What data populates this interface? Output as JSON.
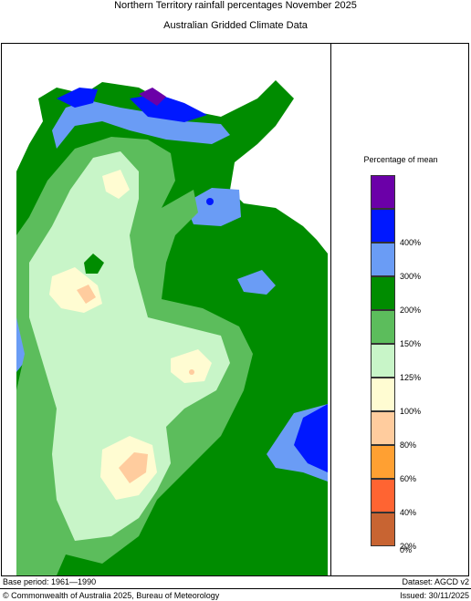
{
  "title": "Northern Territory rainfall percentages November 2025",
  "subtitle": "Australian Gridded Climate Data",
  "legend": {
    "title": "Percentage of mean",
    "entries": [
      {
        "color": "#6b00a8",
        "label": ""
      },
      {
        "color": "#0018ff",
        "label": "400%"
      },
      {
        "color": "#6a9cf5",
        "label": "300%"
      },
      {
        "color": "#008c00",
        "label": "200%"
      },
      {
        "color": "#5cbd5c",
        "label": "150%"
      },
      {
        "color": "#c8f5c8",
        "label": "125%"
      },
      {
        "color": "#fffcd2",
        "label": "100%"
      },
      {
        "color": "#ffcc9e",
        "label": "80%"
      },
      {
        "color": "#ffa032",
        "label": "60%"
      },
      {
        "color": "#ff6432",
        "label": "40%"
      },
      {
        "color": "#c86432",
        "label": "20%"
      }
    ],
    "bottom_label": "0%"
  },
  "footer": {
    "base_period": "Base period: 1961—1990",
    "dataset": "Dataset: AGCD v2",
    "copyright": "© Commonwealth of Australia 2025, Bureau of Meteorology",
    "issued": "Issued: 30/11/2025"
  }
}
